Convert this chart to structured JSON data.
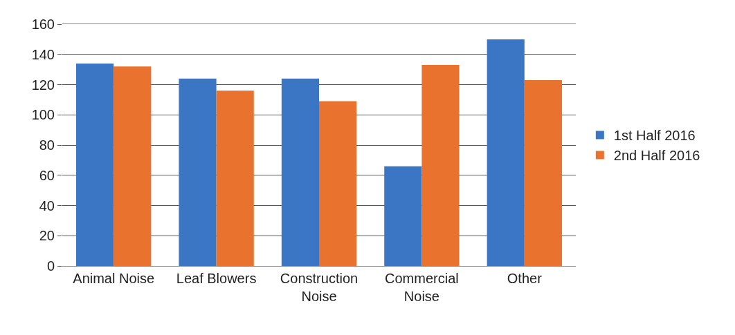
{
  "chart_data": {
    "type": "bar",
    "categories": [
      "Animal Noise",
      "Leaf Blowers",
      "Construction Noise",
      "Commercial Noise",
      "Other"
    ],
    "series": [
      {
        "name": "1st Half 2016",
        "color": "#3a76c4",
        "values": [
          134,
          124,
          124,
          66,
          150
        ]
      },
      {
        "name": "2nd Half 2016",
        "color": "#e8722e",
        "values": [
          132,
          116,
          109,
          133,
          123
        ]
      }
    ],
    "ylim": [
      0,
      160
    ],
    "yticks": [
      0,
      20,
      40,
      60,
      80,
      100,
      120,
      140,
      160
    ],
    "grid": "y",
    "legend": "right"
  }
}
